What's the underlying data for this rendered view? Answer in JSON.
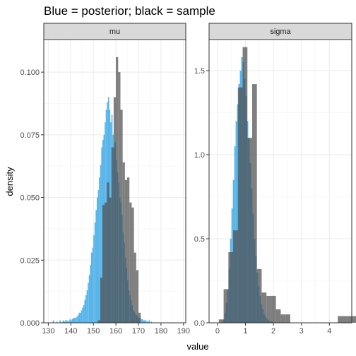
{
  "chart_data": {
    "type": "histogram",
    "title": "Blue = posterior; black = sample",
    "xlabel": "value",
    "ylabel": "density",
    "legend": "none",
    "grid": true,
    "colors": {
      "posterior": "#56B4E9",
      "sample": "#4d4d4d",
      "strip": "#d9d9d9"
    },
    "panels": [
      {
        "name": "mu",
        "xlim": [
          128,
          191
        ],
        "ylim": [
          0,
          0.113
        ],
        "x_ticks": [
          130,
          140,
          150,
          160,
          170,
          180,
          190
        ],
        "x_tick_labels": [
          "130",
          "140",
          "150",
          "160",
          "170",
          "180",
          "190"
        ],
        "y_ticks": [
          0,
          0.025,
          0.05,
          0.075,
          0.1
        ],
        "y_tick_labels": [
          "0.000",
          "0.025",
          "0.050",
          "0.075",
          "0.100"
        ],
        "posterior": {
          "x0": 132,
          "binwidth": 0.5,
          "values": [
            0.001,
            0,
            0,
            0.0005,
            0,
            0,
            0.001,
            0,
            0.0005,
            0.001,
            0.0005,
            0.001,
            0.001,
            0.0005,
            0.001,
            0.0015,
            0.001,
            0.0015,
            0.002,
            0.002,
            0.002,
            0.0025,
            0.003,
            0.004,
            0.004,
            0.005,
            0.006,
            0.007,
            0.009,
            0.011,
            0.013,
            0.016,
            0.019,
            0.023,
            0.028,
            0.03,
            0.035,
            0.04,
            0.045,
            0.05,
            0.053,
            0.058,
            0.063,
            0.07,
            0.073,
            0.075,
            0.08,
            0.085,
            0.088,
            0.09,
            0.085,
            0.08,
            0.083,
            0.075,
            0.07,
            0.072,
            0.065,
            0.06,
            0.056,
            0.05,
            0.048,
            0.043,
            0.036,
            0.032,
            0.026,
            0.022,
            0.017,
            0.013,
            0.011,
            0.009,
            0.007,
            0.005,
            0.0045,
            0.0035,
            0.003,
            0.0025,
            0.002,
            0.002,
            0.0015,
            0.0015,
            0.001,
            0.001,
            0.001,
            0.0005,
            0.0005,
            0.001,
            0,
            0.0005,
            0,
            0
          ]
        },
        "sample": {
          "x0": 152,
          "binwidth": 1,
          "values": [
            0.001,
            0.018,
            0.047,
            0.048,
            0.056,
            0.05,
            0.07,
            0.09,
            0.106,
            0.1,
            0.085,
            0.064,
            0.057,
            0.058,
            0.048,
            0.046,
            0.028,
            0.021,
            0.004
          ]
        }
      },
      {
        "name": "sigma",
        "xlim": [
          -0.3,
          4.8
        ],
        "ylim": [
          0,
          1.685
        ],
        "x_ticks": [
          0,
          1,
          2,
          3,
          4
        ],
        "x_tick_labels": [
          "0",
          "1",
          "2",
          "3",
          "4"
        ],
        "y_ticks": [
          0,
          0.5,
          1.0,
          1.5
        ],
        "y_tick_labels": [
          "0.0",
          "0.5",
          "1.0",
          "1.5"
        ],
        "posterior": {
          "x0": 0.15,
          "binwidth": 0.05,
          "values": [
            0.005,
            0.02,
            0.06,
            0.12,
            0.2,
            0.32,
            0.5,
            0.68,
            0.85,
            1.05,
            1.2,
            1.3,
            1.42,
            1.5,
            1.58,
            1.55,
            1.45,
            1.35,
            1.2,
            1.1,
            0.95,
            0.8,
            0.65,
            0.5,
            0.4,
            0.3,
            0.22,
            0.16,
            0.11,
            0.08,
            0.05,
            0.035,
            0.025,
            0.015,
            0.01,
            0.007,
            0.005,
            0.003
          ]
        },
        "sample": {
          "x0": 0.05,
          "binwidth": 0.17,
          "values": [
            0.02,
            0.2,
            0.42,
            0.55,
            1.4,
            1.64,
            1.1,
            1.42,
            0.32,
            0.18,
            0.16,
            0.16,
            0.08,
            0.05,
            0.05,
            0,
            0,
            0,
            0,
            0,
            0,
            0,
            0,
            0,
            0,
            0.04,
            0.04,
            0.04,
            0.04
          ]
        }
      }
    ]
  }
}
